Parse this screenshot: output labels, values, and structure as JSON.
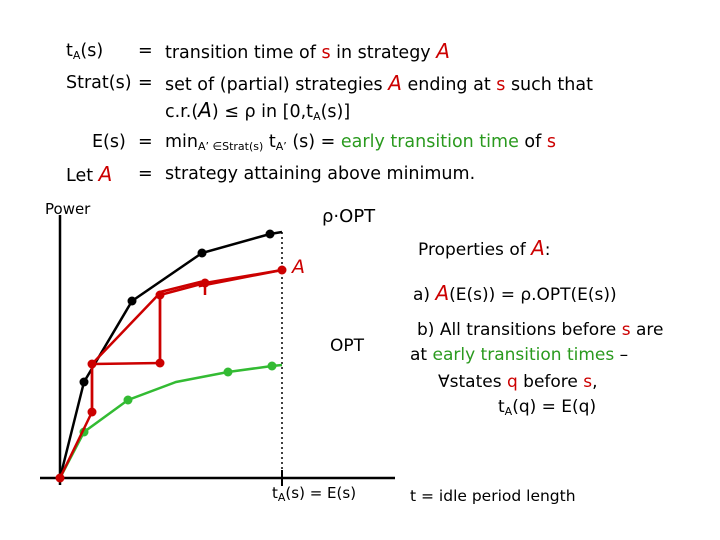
{
  "defs": {
    "row1": {
      "lhs_t": "t",
      "lhs_sub": "A",
      "lhs_rest": "(s)",
      "eq": "=",
      "txt1": "transition time of ",
      "s": "s",
      "txt2": " in strategy ",
      "A": "A"
    },
    "row2": {
      "lhs": "Strat(s)",
      "eq": "=",
      "txt1": "set of (partial) strategies ",
      "A": "A",
      "txt2": " ending at ",
      "s": "s",
      "txt3": " such that"
    },
    "row3": {
      "txt1": "c.r.(",
      "A": "A",
      "txt2": ") ≤ ρ in [0,t",
      "sub": "A",
      "txt3": "(s)]"
    },
    "row4": {
      "lhs": "E(s)",
      "eq": "=",
      "min": "min",
      "min_sub": "A’ ∈Strat(s)",
      "t": " t",
      "t_sub": "A’",
      "rest": " (s) = ",
      "green": "early transition time",
      "of": " of ",
      "s": "s"
    },
    "row5": {
      "lhs_let": "Let ",
      "lhs_A": "A",
      "eq": "=",
      "txt": "strategy attaining above minimum."
    }
  },
  "diagram": {
    "y_axis_label": "Power",
    "rho_opt_label": "ρ·OPT",
    "strategy_label": "A",
    "opt_label": "OPT",
    "x_mark_t": "t",
    "x_mark_sub": "A",
    "x_mark_rest": "(s) = E(s)",
    "x_axis_label": "t = idle period length",
    "colors": {
      "black": "#000000",
      "red": "#cc0000",
      "green": "#33bb33"
    }
  },
  "properties": {
    "title_pre": "Properties of ",
    "title_A": "A",
    "title_post": ":",
    "a_pre": "a) ",
    "a_A": "A",
    "a_post": "(E(s)) = ρ.OPT(E(s))",
    "b_line1_pre": "b) All transitions before ",
    "b_line1_s": "s",
    "b_line1_post": " are",
    "b_line2_pre": "at ",
    "b_line2_green": "early transition times",
    "b_line2_post": " –",
    "b_line3_forall": "∀",
    "b_line3_txt1": "states ",
    "b_line3_q": "q",
    "b_line3_txt2": " before ",
    "b_line3_s": "s",
    "b_line3_txt3": ",",
    "b_line4_t": "t",
    "b_line4_sub": "A",
    "b_line4_rest": "(q) = E(q)"
  }
}
